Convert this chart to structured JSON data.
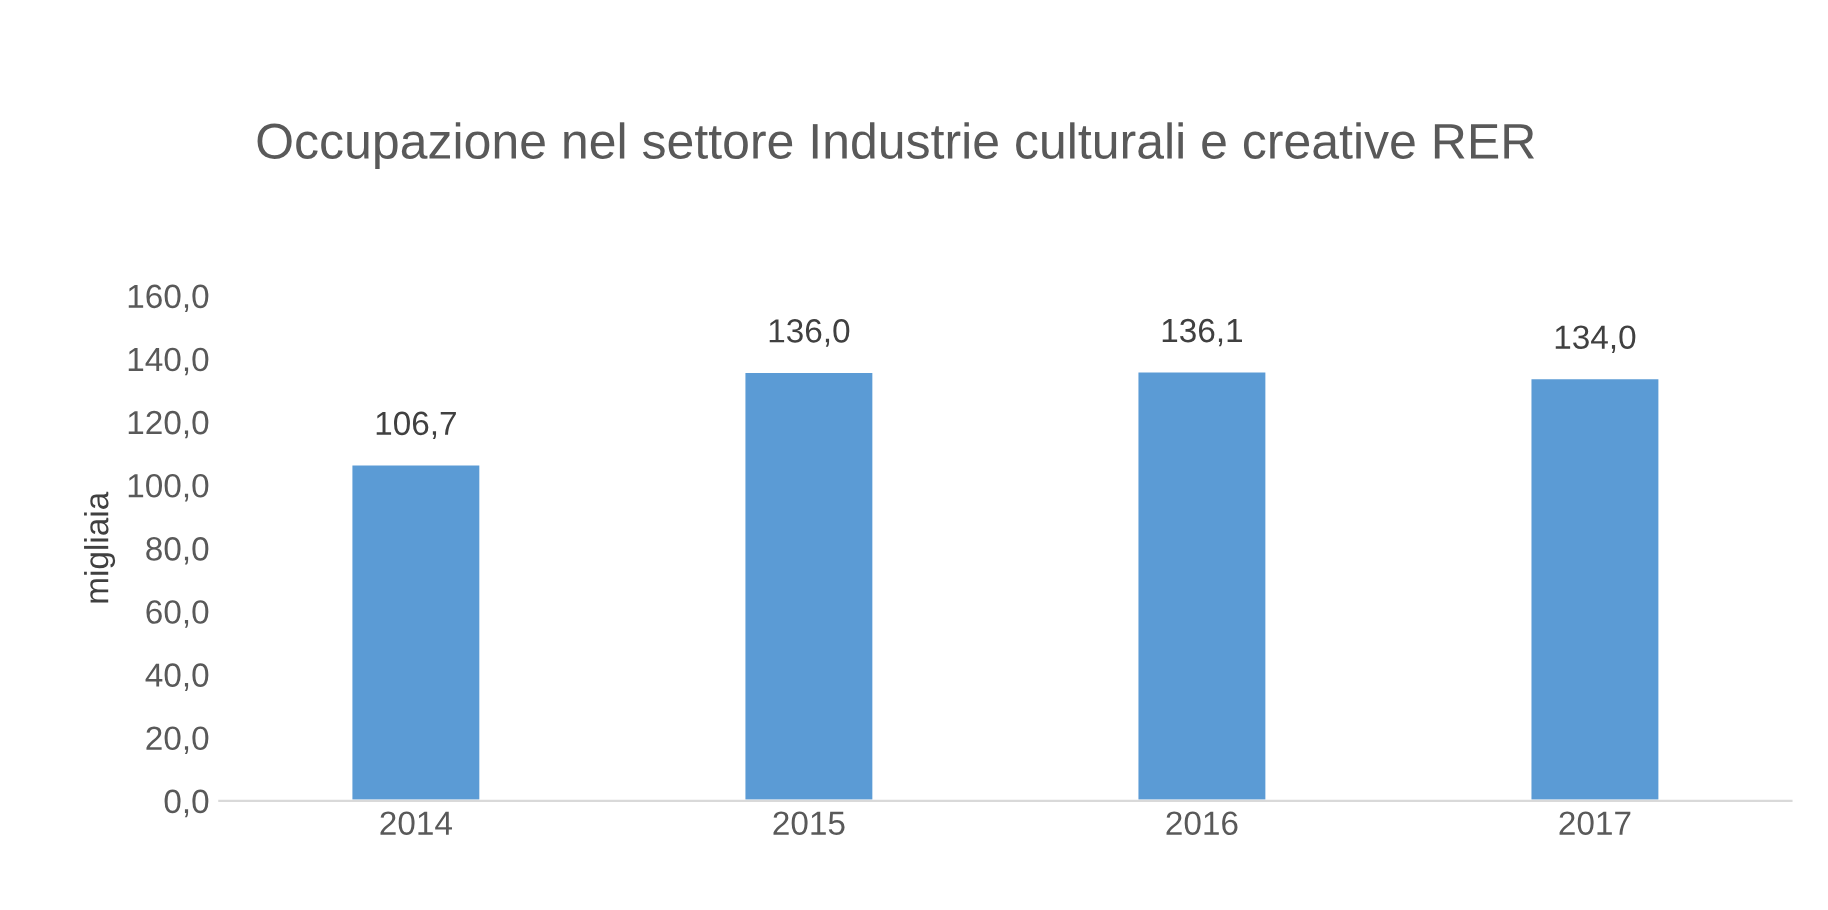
{
  "chart_data": {
    "type": "bar",
    "title": "Occupazione nel settore Industrie culturali e creative RER",
    "ylabel": "migliaia",
    "categories": [
      "2014",
      "2015",
      "2016",
      "2017"
    ],
    "values": [
      106.7,
      136.0,
      136.1,
      134.0
    ],
    "color": "#5b9bd5",
    "value_labels": [
      "106,7",
      "136,0",
      "136,1",
      "134,0"
    ],
    "ylim": [
      0,
      160
    ],
    "yticks": [
      {
        "value": 0,
        "label": "0,0"
      },
      {
        "value": 20,
        "label": "20,0"
      },
      {
        "value": 40,
        "label": "40,0"
      },
      {
        "value": 60,
        "label": "60,0"
      },
      {
        "value": 80,
        "label": "80,0"
      },
      {
        "value": 100,
        "label": "100,0"
      },
      {
        "value": 120,
        "label": "120,0"
      },
      {
        "value": 140,
        "label": "140,0"
      },
      {
        "value": 160,
        "label": "160,0"
      }
    ],
    "grid": false,
    "legend": false
  }
}
